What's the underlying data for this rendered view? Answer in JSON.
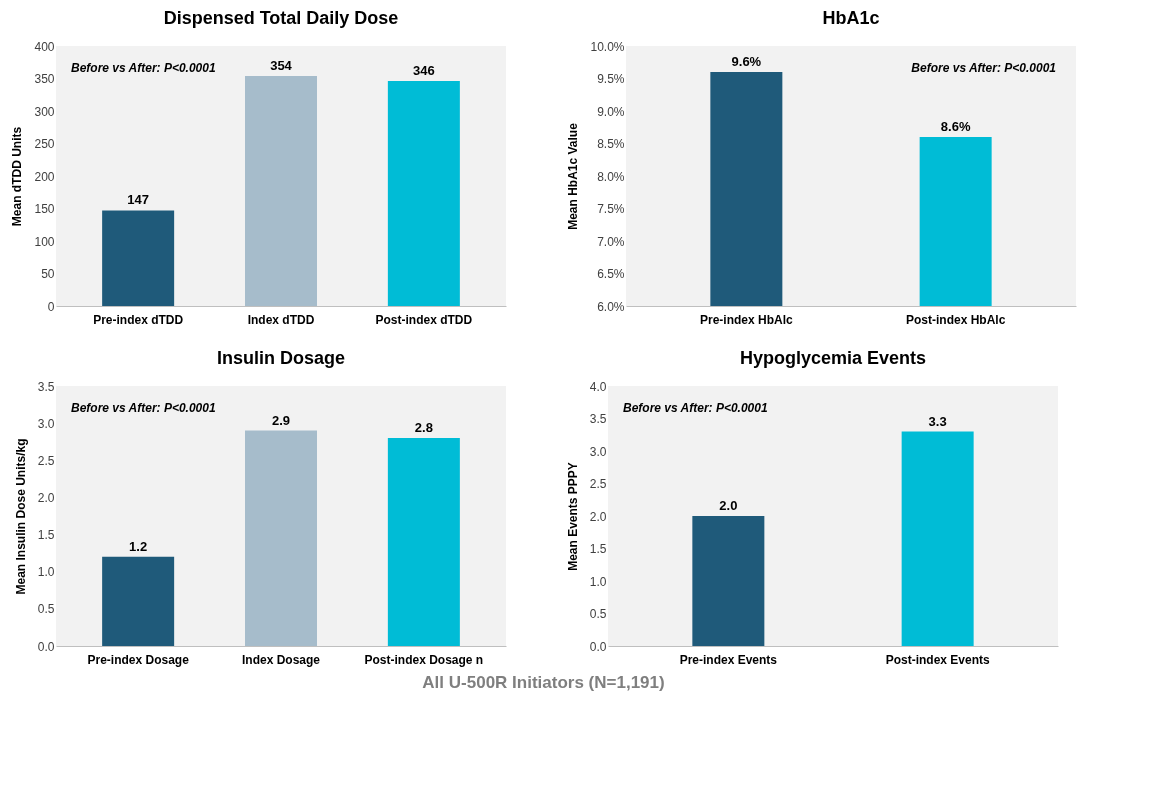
{
  "chart_data": [
    {
      "type": "bar",
      "title": "Dispensed Total Daily Dose",
      "ylabel": "Mean dTDD Units",
      "categories": [
        "Pre-index dTDD",
        "Index dTDD",
        "Post-index dTDD"
      ],
      "values": [
        147,
        354,
        346
      ],
      "colors": [
        "#1f5a7a",
        "#a6bccb",
        "#00bcd6"
      ],
      "ylim": [
        0,
        400
      ],
      "yticks": [
        0,
        50,
        100,
        150,
        200,
        250,
        300,
        350,
        400
      ],
      "data_labels": true,
      "grid": false,
      "annotations": [
        "Before vs After: P<0.0001"
      ]
    },
    {
      "type": "bar",
      "title": "HbA1c",
      "ylabel": "Mean HbA1c Value",
      "categories": [
        "Pre-index HbAlc",
        "Post-index HbAlc"
      ],
      "values": [
        9.6,
        8.6
      ],
      "colors": [
        "#1f5a7a",
        "#00bcd6"
      ],
      "ylim": [
        6.0,
        10.0
      ],
      "yticks": [
        {
          "value": 6.0,
          "label": "6.0%"
        },
        {
          "value": 6.5,
          "label": "6.5%"
        },
        {
          "value": 7.0,
          "label": "7.0%"
        },
        {
          "value": 7.5,
          "label": "7.5%"
        },
        {
          "value": 8.0,
          "label": "8.0%"
        },
        {
          "value": 8.5,
          "label": "8.5%"
        },
        {
          "value": 9.0,
          "label": "9.0%"
        },
        {
          "value": 9.5,
          "label": "9.5%"
        },
        {
          "value": 10.0,
          "label": "10.0%"
        }
      ],
      "value_labels": [
        "9.6%",
        "8.6%"
      ],
      "grid": false,
      "annotations": [
        "Before vs After: P<0.0001"
      ]
    },
    {
      "type": "bar",
      "title": "Insulin Dosage",
      "ylabel": "Mean Insulin Dose Units/kg",
      "categories": [
        "Pre-index Dosage",
        "Index Dosage",
        "Post-index Dosage n"
      ],
      "values": [
        1.2,
        2.9,
        2.8
      ],
      "colors": [
        "#1f5a7a",
        "#a6bccb",
        "#00bcd6"
      ],
      "ylim": [
        0,
        3.5
      ],
      "yticks": [
        {
          "value": 0,
          "label": "0.0"
        },
        0.5,
        {
          "value": 1,
          "label": "1.0"
        },
        1.5,
        {
          "value": 2,
          "label": "2.0"
        },
        2.5,
        {
          "value": 3,
          "label": "3.0"
        },
        3.5
      ],
      "data_labels": true,
      "grid": false,
      "annotations": [
        "Before vs After: P<0.0001"
      ]
    },
    {
      "type": "bar",
      "title": "Hypoglycemia Events",
      "ylabel": "Mean Events PPPY",
      "categories": [
        "Pre-index Events",
        "Post-index Events"
      ],
      "values": [
        2.0,
        3.3
      ],
      "colors": [
        "#1f5a7a",
        "#00bcd6"
      ],
      "ylim": [
        0,
        4.0
      ],
      "yticks": [
        {
          "value": 0,
          "label": "0.0"
        },
        0.5,
        {
          "value": 1,
          "label": "1.0"
        },
        1.5,
        {
          "value": 2,
          "label": "2.0"
        },
        2.5,
        {
          "value": 3,
          "label": "3.0"
        },
        3.5,
        {
          "value": 4,
          "label": "4.0"
        }
      ],
      "value_labels": [
        "2.0",
        "3.3"
      ],
      "grid": false,
      "annotations": [
        "Before vs After: P<0.0001",
        "All U-500R Initiators (N=1,191)"
      ]
    }
  ]
}
